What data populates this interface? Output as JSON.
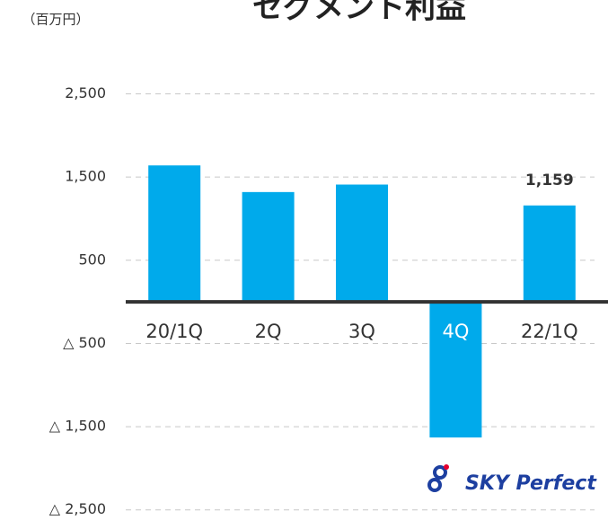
{
  "chart_data": {
    "type": "bar",
    "title": "セグメント利益",
    "unit_label": "（百万円）",
    "categories": [
      "20/1Q",
      "2Q",
      "3Q",
      "4Q",
      "22/1Q"
    ],
    "values": [
      1640,
      1320,
      1410,
      -1630,
      1159
    ],
    "value_labels": [
      null,
      null,
      null,
      null,
      "1,159"
    ],
    "color": "#00aaeb",
    "ylim": [
      -2600,
      2700
    ],
    "yticks": [
      {
        "value": 2500,
        "label": "2,500"
      },
      {
        "value": 1500,
        "label": "1,500"
      },
      500,
      {
        "value": -500,
        "label": "△ 500"
      },
      {
        "value": -1500,
        "label": "△ 1,500"
      },
      {
        "value": -2500,
        "label": "△ 2,500"
      }
    ],
    "grid": true
  },
  "logo": {
    "text": "SKY Perfect"
  }
}
